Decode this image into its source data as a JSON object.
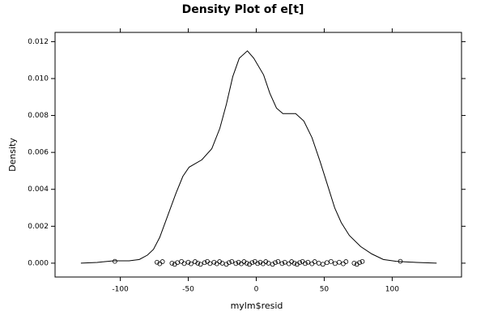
{
  "chart_data": {
    "type": "density",
    "title": "Density Plot of e[t]",
    "x_label": "mylm$resid",
    "y_label": "Density",
    "color": "#000000",
    "x": [
      -129,
      -117,
      -105,
      -93.5,
      -86,
      -80,
      -75.6,
      -71,
      -65,
      -59,
      -54,
      -49.4,
      -40,
      -32.7,
      -26.8,
      -22,
      -17.3,
      -12.5,
      -6.5,
      -1.8,
      5.4,
      10,
      14.9,
      19.6,
      29,
      35,
      41,
      47,
      53,
      57.7,
      62.5,
      68.5,
      76.8,
      85,
      93.5,
      103,
      118,
      132.7
    ],
    "y": [
      0,
      4e-05,
      0.00013,
      0.00013,
      0.0002,
      0.00044,
      0.00075,
      0.0014,
      0.0026,
      0.0038,
      0.0047,
      0.0052,
      0.0056,
      0.0062,
      0.0073,
      0.0086,
      0.0101,
      0.0111,
      0.0115,
      0.0111,
      0.0102,
      0.0092,
      0.0084,
      0.0081,
      0.0081,
      0.0077,
      0.0068,
      0.0055,
      0.0041,
      0.003,
      0.0022,
      0.0015,
      0.0009,
      0.0005,
      0.0002,
      0.0001,
      4e-05,
      0
    ],
    "points_x": [
      -104,
      -73,
      -71,
      -69,
      -62,
      -60,
      -58,
      -55,
      -53,
      -50,
      -48,
      -45,
      -43,
      -41,
      -38,
      -36,
      -34,
      -31,
      -29,
      -27,
      -25,
      -22,
      -20,
      -18,
      -15,
      -13,
      -11,
      -9,
      -7,
      -5,
      -3,
      -1,
      1,
      3,
      5,
      7,
      9,
      12,
      14,
      16,
      19,
      21,
      24,
      26,
      28,
      30,
      32,
      34,
      36,
      38,
      41,
      43,
      46,
      49,
      52,
      55,
      58,
      61,
      64,
      66,
      72,
      74,
      76,
      78,
      106
    ],
    "points_y": [
      0.0001,
      5e-05,
      -3e-05,
      8e-05,
      0,
      -6e-05,
      3e-05,
      9e-05,
      -2e-05,
      5e-05,
      -3e-05,
      8e-05,
      0,
      -6e-05,
      3e-05,
      9e-05,
      -2e-05,
      5e-05,
      -3e-05,
      8e-05,
      0,
      -6e-05,
      3e-05,
      9e-05,
      -2e-05,
      5e-05,
      -3e-05,
      8e-05,
      0,
      -6e-05,
      3e-05,
      9e-05,
      -2e-05,
      5e-05,
      -3e-05,
      8e-05,
      0,
      -6e-05,
      3e-05,
      9e-05,
      -2e-05,
      5e-05,
      -3e-05,
      8e-05,
      0,
      -6e-05,
      3e-05,
      9e-05,
      -2e-05,
      5e-05,
      -3e-05,
      8e-05,
      0,
      -6e-05,
      3e-05,
      9e-05,
      -2e-05,
      5e-05,
      -3e-05,
      8e-05,
      0,
      -6e-05,
      3e-05,
      9e-05,
      0.0001
    ],
    "xlim": [
      -148,
      151
    ],
    "ylim": [
      -0.00075,
      0.0125
    ],
    "xticks": [
      -100,
      -50,
      0,
      50,
      100
    ],
    "yticks": [
      {
        "value": 0,
        "label": "0.000"
      },
      {
        "value": 0.002,
        "label": "0.002"
      },
      {
        "value": 0.004,
        "label": "0.004"
      },
      {
        "value": 0.006,
        "label": "0.006"
      },
      {
        "value": 0.008,
        "label": "0.008"
      },
      {
        "value": 0.01,
        "label": "0.010"
      },
      {
        "value": 0.012,
        "label": "0.012"
      }
    ]
  }
}
